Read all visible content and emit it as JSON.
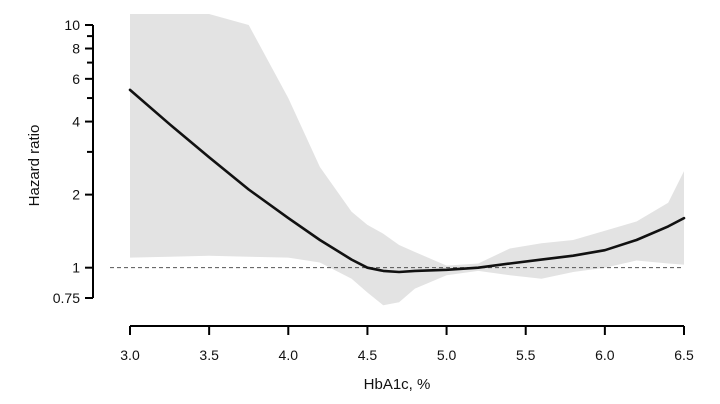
{
  "chart_data": {
    "type": "line",
    "xlabel": "HbA1c, %",
    "ylabel": "Hazard ratio",
    "xlim": [
      3.0,
      6.5
    ],
    "ylim": [
      0.75,
      10
    ],
    "yscale": "log",
    "x_ticks": [
      3.0,
      3.5,
      4.0,
      4.5,
      5.0,
      5.5,
      6.0,
      6.5
    ],
    "x_tick_labels": [
      "3.0",
      "3.5",
      "4.0",
      "4.5",
      "5.0",
      "5.5",
      "6.0",
      "6.5"
    ],
    "y_ticks": [
      0.75,
      1,
      2,
      4,
      6,
      8,
      10
    ],
    "y_tick_labels": [
      "0.75",
      "1",
      "2",
      "4",
      "6",
      "8",
      "10"
    ],
    "y_minor_ticks": [
      3,
      5,
      7,
      9
    ],
    "reference_line": {
      "y": 1,
      "style": "dashed"
    },
    "grid": false,
    "series": [
      {
        "x": [
          3.0,
          3.25,
          3.5,
          3.75,
          4.0,
          4.2,
          4.4,
          4.5,
          4.6,
          4.7,
          4.8,
          5.0,
          5.2,
          5.4,
          5.6,
          5.8,
          6.0,
          6.2,
          6.4,
          6.5
        ],
        "y": [
          5.4,
          3.9,
          2.85,
          2.1,
          1.6,
          1.3,
          1.08,
          1.0,
          0.97,
          0.96,
          0.97,
          0.98,
          1.0,
          1.04,
          1.08,
          1.12,
          1.18,
          1.3,
          1.48,
          1.6
        ],
        "ci_lower": [
          1.1,
          1.11,
          1.12,
          1.11,
          1.1,
          1.05,
          0.9,
          0.79,
          0.7,
          0.72,
          0.82,
          0.93,
          0.97,
          0.93,
          0.9,
          0.96,
          1.0,
          1.07,
          1.04,
          1.03
        ],
        "ci_upper": [
          13,
          13,
          13,
          10,
          5.0,
          2.6,
          1.7,
          1.5,
          1.38,
          1.24,
          1.16,
          1.02,
          1.04,
          1.2,
          1.26,
          1.3,
          1.42,
          1.55,
          1.85,
          2.5
        ]
      }
    ]
  }
}
